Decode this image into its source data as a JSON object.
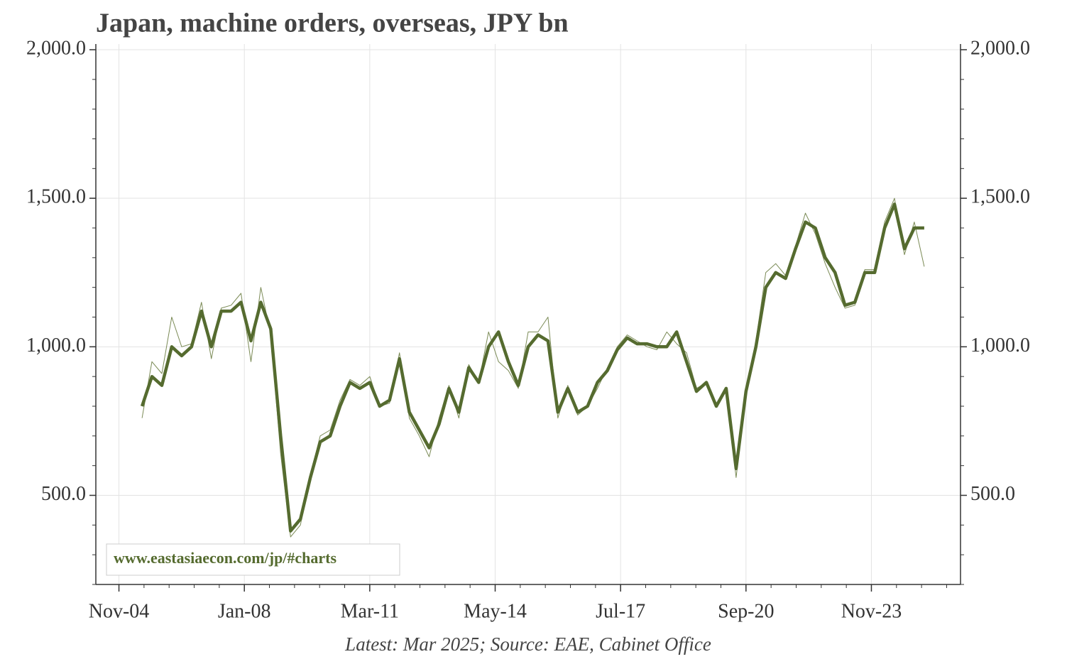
{
  "chart_data": {
    "type": "line",
    "title": "Japan, machine orders, overseas, JPY bn",
    "note": "Latest: Mar 2025; Source: EAE, Cabinet Office",
    "watermark": "www.eastasiaecon.com/jp/#charts",
    "x": [
      "Jun-05",
      "Sep-05",
      "Dec-05",
      "Mar-06",
      "Jun-06",
      "Sep-06",
      "Dec-06",
      "Mar-07",
      "Jun-07",
      "Sep-07",
      "Dec-07",
      "Mar-08",
      "Jun-08",
      "Sep-08",
      "Dec-08",
      "Mar-09",
      "Jun-09",
      "Sep-09",
      "Dec-09",
      "Mar-10",
      "Jun-10",
      "Sep-10",
      "Dec-10",
      "Mar-11",
      "Jun-11",
      "Sep-11",
      "Dec-11",
      "Mar-12",
      "Jun-12",
      "Sep-12",
      "Dec-12",
      "Mar-13",
      "Jun-13",
      "Sep-13",
      "Dec-13",
      "Mar-14",
      "Jun-14",
      "Sep-14",
      "Dec-14",
      "Mar-15",
      "Jun-15",
      "Sep-15",
      "Dec-15",
      "Mar-16",
      "Jun-16",
      "Sep-16",
      "Dec-16",
      "Mar-17",
      "Jun-17",
      "Sep-17",
      "Dec-17",
      "Mar-18",
      "Jun-18",
      "Sep-18",
      "Dec-18",
      "Mar-19",
      "Jun-19",
      "Sep-19",
      "Dec-19",
      "Mar-20",
      "Jun-20",
      "Sep-20",
      "Dec-20",
      "Mar-21",
      "Jun-21",
      "Sep-21",
      "Dec-21",
      "Mar-22",
      "Jun-22",
      "Sep-22",
      "Dec-22",
      "Mar-23",
      "Jun-23",
      "Sep-23",
      "Dec-23",
      "Mar-24",
      "Jun-24",
      "Sep-24",
      "Dec-24",
      "Mar-25"
    ],
    "series": [
      {
        "color": "#7a8a55",
        "width": 1,
        "values": [
          760,
          950,
          910,
          1100,
          1000,
          1010,
          1150,
          960,
          1130,
          1140,
          1180,
          950,
          1200,
          1040,
          640,
          360,
          400,
          570,
          700,
          720,
          820,
          890,
          870,
          900,
          800,
          810,
          980,
          760,
          700,
          630,
          760,
          870,
          760,
          940,
          880,
          1050,
          950,
          920,
          860,
          1050,
          1050,
          1100,
          760,
          870,
          770,
          800,
          860,
          930,
          1000,
          1040,
          1020,
          1000,
          990,
          1050,
          1010,
          980,
          860,
          880,
          810,
          850,
          560,
          840,
          1020,
          1250,
          1280,
          1240,
          1340,
          1450,
          1380,
          1280,
          1200,
          1130,
          1140,
          1260,
          1260,
          1420,
          1500,
          1310,
          1420,
          1270
        ]
      },
      {
        "color": "#556b2f",
        "width": 4.5,
        "values": [
          800,
          900,
          870,
          1000,
          970,
          1000,
          1120,
          1000,
          1120,
          1120,
          1150,
          1020,
          1150,
          1060,
          700,
          380,
          420,
          560,
          680,
          700,
          800,
          880,
          860,
          880,
          800,
          820,
          960,
          780,
          720,
          660,
          740,
          860,
          780,
          930,
          880,
          1000,
          1050,
          950,
          870,
          1000,
          1040,
          1020,
          780,
          860,
          780,
          800,
          880,
          920,
          990,
          1030,
          1010,
          1010,
          1000,
          1000,
          1050,
          950,
          850,
          880,
          800,
          860,
          590,
          850,
          1000,
          1200,
          1250,
          1230,
          1330,
          1420,
          1400,
          1300,
          1250,
          1140,
          1150,
          1250,
          1250,
          1400,
          1480,
          1330,
          1400,
          1400
        ]
      }
    ],
    "xlim": [
      "Apr-04",
      "Feb-26"
    ],
    "xticks": [
      "Nov-04",
      "Jan-08",
      "Mar-11",
      "May-14",
      "Jul-17",
      "Sep-20",
      "Nov-23"
    ],
    "ylim": [
      200,
      2000
    ],
    "yticks": [
      {
        "value": 500,
        "label": "500.0"
      },
      {
        "value": 1000,
        "label": "1,000.0"
      },
      {
        "value": 1500,
        "label": "1,500.0"
      },
      {
        "value": 2000,
        "label": "2,000.0"
      }
    ],
    "grid": true
  }
}
